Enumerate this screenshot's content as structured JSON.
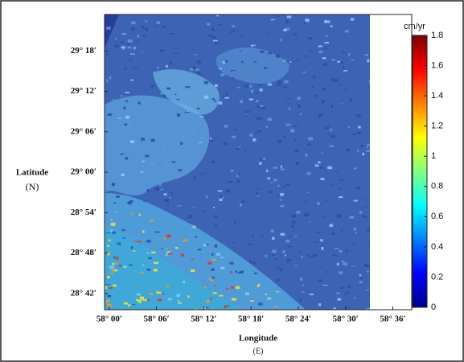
{
  "chart_data": {
    "type": "raster-map",
    "ylabel": "Latitude",
    "ylabel_unit": "(N)",
    "xlabel": "Longitude",
    "xlabel_unit": "(E)",
    "ylim": [
      28.66,
      29.39
    ],
    "yticks": [
      {
        "value": 29.3,
        "label": "29° 18′"
      },
      {
        "value": 29.2,
        "label": "29° 12′"
      },
      {
        "value": 29.1,
        "label": "29° 06′"
      },
      {
        "value": 29.0,
        "label": "29° 00′"
      },
      {
        "value": 28.9,
        "label": "28° 54′"
      },
      {
        "value": 28.8,
        "label": "28° 48′"
      },
      {
        "value": 28.7,
        "label": "28° 42′"
      }
    ],
    "xlim": [
      57.99,
      58.64
    ],
    "xticks": [
      {
        "value": 58.0,
        "label": "58° 00′"
      },
      {
        "value": 58.1,
        "label": "58° 06′"
      },
      {
        "value": 58.2,
        "label": "58° 12′"
      },
      {
        "value": 58.3,
        "label": "58° 18′"
      },
      {
        "value": 58.4,
        "label": "58° 24′"
      },
      {
        "value": 58.5,
        "label": "58° 30′"
      },
      {
        "value": 58.6,
        "label": "58° 36′"
      }
    ],
    "colorbar_label": "cm/yr",
    "colormap": "jet",
    "clim": [
      0,
      1.8
    ],
    "cticks": [
      0,
      0.2,
      0.4,
      0.6,
      0.8,
      1,
      1.2,
      1.4,
      1.6,
      1.8
    ]
  }
}
